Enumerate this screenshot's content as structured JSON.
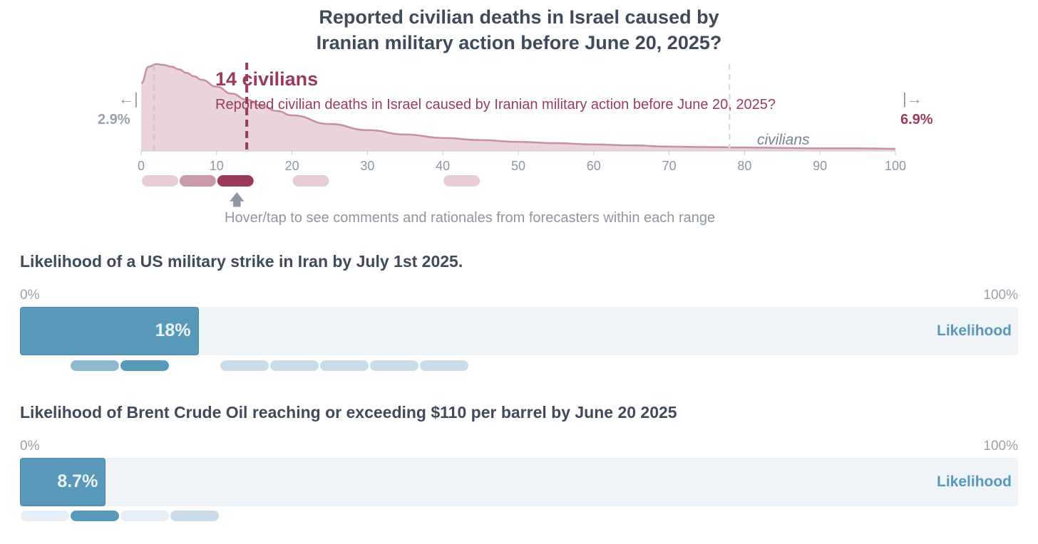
{
  "distribution": {
    "title_line1": "Reported civilian deaths in Israel caused by",
    "title_line2": "Iranian military action before June 20, 2025?",
    "median_label": "14 civilians",
    "median_question": "Reported civilian deaths in Israel caused by Iranian military action before June 20, 2025?",
    "unit": "civilians",
    "left_tail_arrow": "←|",
    "right_tail_arrow": "|→",
    "left_tail_value": "2.9%",
    "right_tail_value": "6.9%",
    "hover_arrow": "🡅",
    "hover_hint": "Hover/tap to see comments and rationales from forecasters within each range",
    "colors": {
      "fill": "#e9d3dc",
      "stroke": "#c88ea3",
      "accent": "#9a3a5c",
      "grid": "#d8d8d8"
    }
  },
  "bar_questions": [
    {
      "title": "Likelihood of a US military strike in Iran by July 1st 2025.",
      "axis_min": "0%",
      "axis_max": "100%",
      "value_label": "18%",
      "caption": "Likelihood"
    },
    {
      "title": "Likelihood of Brent Crude Oil reaching or exceeding $110 per barrel by June 20 2025",
      "axis_min": "0%",
      "axis_max": "100%",
      "value_label": "8.7%",
      "caption": "Likelihood"
    }
  ],
  "chart_data": [
    {
      "type": "area",
      "title": "Reported civilian deaths in Israel caused by Iranian military action before June 20, 2025?",
      "xlabel": "civilians",
      "ylabel": "",
      "xlim": [
        0,
        100
      ],
      "x_ticks": [
        0,
        10,
        20,
        30,
        40,
        50,
        60,
        70,
        80,
        90,
        100
      ],
      "x": [
        0,
        1,
        2,
        3,
        4,
        5,
        6,
        7,
        8,
        10,
        12,
        14,
        16,
        18,
        20,
        25,
        30,
        35,
        40,
        45,
        50,
        55,
        60,
        65,
        70,
        75,
        80,
        85,
        90,
        95,
        100
      ],
      "density": [
        0.78,
        0.97,
        1.0,
        0.99,
        0.97,
        0.94,
        0.9,
        0.86,
        0.82,
        0.74,
        0.66,
        0.59,
        0.52,
        0.46,
        0.41,
        0.31,
        0.24,
        0.19,
        0.15,
        0.125,
        0.105,
        0.09,
        0.075,
        0.065,
        0.05,
        0.045,
        0.04,
        0.035,
        0.03,
        0.03,
        0.025
      ],
      "median": 14,
      "quartile_low": 1.7,
      "quartile_high": 78,
      "below_range_probability": "2.9%",
      "above_range_probability": "6.9%",
      "forecaster_ranges": [
        {
          "from": 0,
          "to": 5,
          "intensity": 1
        },
        {
          "from": 5,
          "to": 10,
          "intensity": 2
        },
        {
          "from": 10,
          "to": 15,
          "intensity": 3
        },
        {
          "from": 20,
          "to": 25,
          "intensity": 1
        },
        {
          "from": 40,
          "to": 45,
          "intensity": 1
        }
      ]
    },
    {
      "type": "bar",
      "title": "Likelihood of a US military strike in Iran by July 1st 2025.",
      "categories": [
        "Likelihood"
      ],
      "values": [
        18
      ],
      "ylim": [
        0,
        100
      ],
      "forecaster_ranges": [
        {
          "from": 5,
          "to": 10,
          "intensity": 2
        },
        {
          "from": 10,
          "to": 15,
          "intensity": 3
        },
        {
          "from": 20,
          "to": 25,
          "intensity": 1
        },
        {
          "from": 25,
          "to": 30,
          "intensity": 1
        },
        {
          "from": 30,
          "to": 35,
          "intensity": 1
        },
        {
          "from": 35,
          "to": 40,
          "intensity": 1
        },
        {
          "from": 40,
          "to": 45,
          "intensity": 1
        }
      ]
    },
    {
      "type": "bar",
      "title": "Likelihood of Brent Crude Oil reaching or exceeding $110 per barrel by June 20 2025",
      "categories": [
        "Likelihood"
      ],
      "values": [
        8.7
      ],
      "ylim": [
        0,
        100
      ],
      "forecaster_ranges": [
        {
          "from": 0,
          "to": 5,
          "intensity": 0
        },
        {
          "from": 5,
          "to": 10,
          "intensity": 3
        },
        {
          "from": 10,
          "to": 15,
          "intensity": 0
        },
        {
          "from": 15,
          "to": 20,
          "intensity": 1
        }
      ]
    }
  ]
}
